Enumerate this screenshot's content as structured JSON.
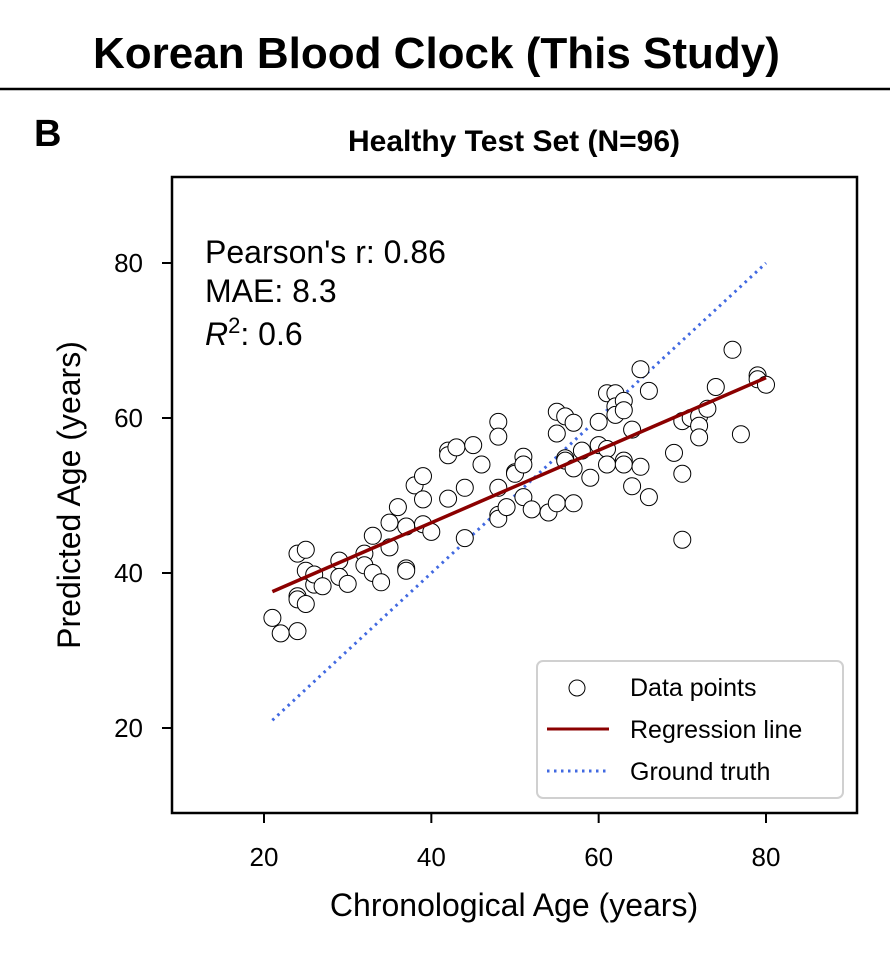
{
  "suptitle": "Korean Blood Clock (This Study)",
  "panel_label": "B",
  "chart_data": {
    "type": "scatter",
    "title": "Healthy Test Set (N=96)",
    "xlabel": "Chronological Age (years)",
    "ylabel": "Predicted Age (years)",
    "xlim": [
      9,
      91
    ],
    "ylim": [
      9,
      91
    ],
    "xticks": [
      20,
      40,
      60,
      80
    ],
    "yticks": [
      20,
      40,
      60,
      80
    ],
    "grid": false,
    "legend_position": "lower right",
    "stats": {
      "pearson_label": "Pearson's r: 0.86",
      "mae_label": "MAE: 8.3",
      "r2_prefix": "R",
      "r2_sup": "2",
      "r2_value": ": 0.6"
    },
    "series": [
      {
        "name": "Data points",
        "kind": "scatter",
        "marker_face": "#ffffff",
        "marker_edge": "#000000",
        "points": [
          [
            21,
            34.2
          ],
          [
            22,
            32.2
          ],
          [
            24,
            42.5
          ],
          [
            24,
            37
          ],
          [
            24,
            36.6
          ],
          [
            24,
            32.5
          ],
          [
            25,
            43
          ],
          [
            25,
            40.3
          ],
          [
            25,
            36
          ],
          [
            26,
            38.5
          ],
          [
            26,
            39.8
          ],
          [
            27,
            38.3
          ],
          [
            29,
            41.6
          ],
          [
            29,
            39.5
          ],
          [
            30,
            38.6
          ],
          [
            32,
            42.5
          ],
          [
            32,
            41
          ],
          [
            33,
            44.8
          ],
          [
            33,
            40
          ],
          [
            34,
            38.8
          ],
          [
            35,
            46.5
          ],
          [
            35,
            43.3
          ],
          [
            36,
            48.5
          ],
          [
            37,
            46
          ],
          [
            37,
            40.6
          ],
          [
            37,
            40.3
          ],
          [
            38,
            51.3
          ],
          [
            39,
            52.5
          ],
          [
            39,
            49.5
          ],
          [
            39,
            46.3
          ],
          [
            40,
            45.3
          ],
          [
            42,
            55.8
          ],
          [
            42,
            55.2
          ],
          [
            42,
            49.6
          ],
          [
            43,
            56.2
          ],
          [
            44,
            51
          ],
          [
            44,
            44.5
          ],
          [
            45,
            56.5
          ],
          [
            46,
            54
          ],
          [
            48,
            59.5
          ],
          [
            48,
            57.6
          ],
          [
            48,
            51
          ],
          [
            48,
            47.5
          ],
          [
            48,
            47
          ],
          [
            49,
            48.5
          ],
          [
            50,
            53
          ],
          [
            50,
            52.8
          ],
          [
            51,
            55
          ],
          [
            51,
            54
          ],
          [
            51,
            49.8
          ],
          [
            52,
            48.2
          ],
          [
            54,
            47.8
          ],
          [
            55,
            60.8
          ],
          [
            55,
            58
          ],
          [
            55,
            49
          ],
          [
            56,
            60.2
          ],
          [
            56,
            54.8
          ],
          [
            56,
            54.5
          ],
          [
            57,
            59.4
          ],
          [
            57,
            53.5
          ],
          [
            57,
            49
          ],
          [
            58,
            55.8
          ],
          [
            59,
            52.3
          ],
          [
            60,
            59.5
          ],
          [
            60,
            56.5
          ],
          [
            61,
            63.2
          ],
          [
            61,
            56
          ],
          [
            61,
            54
          ],
          [
            62,
            63.2
          ],
          [
            62,
            61.5
          ],
          [
            62,
            60.4
          ],
          [
            63,
            62.2
          ],
          [
            63,
            61
          ],
          [
            63,
            54.5
          ],
          [
            63,
            54
          ],
          [
            64,
            58.5
          ],
          [
            64,
            51.2
          ],
          [
            65,
            66.3
          ],
          [
            65,
            53.7
          ],
          [
            66,
            63.5
          ],
          [
            66,
            49.8
          ],
          [
            69,
            55.5
          ],
          [
            70,
            59.6
          ],
          [
            70,
            52.8
          ],
          [
            70,
            44.3
          ],
          [
            71,
            60
          ],
          [
            72,
            60.2
          ],
          [
            72,
            59
          ],
          [
            72,
            57.5
          ],
          [
            73,
            61.2
          ],
          [
            74,
            64
          ],
          [
            76,
            68.8
          ],
          [
            77,
            57.9
          ],
          [
            79,
            65.5
          ],
          [
            79,
            65
          ],
          [
            80,
            64.3
          ]
        ]
      },
      {
        "name": "Regression line",
        "kind": "line",
        "color": "#8b0000",
        "x": [
          21,
          80
        ],
        "y": [
          37.6,
          65.2
        ]
      },
      {
        "name": "Ground truth",
        "kind": "dotted-line",
        "color": "#4169e1",
        "x": [
          21,
          80
        ],
        "y": [
          21,
          80
        ]
      }
    ]
  }
}
